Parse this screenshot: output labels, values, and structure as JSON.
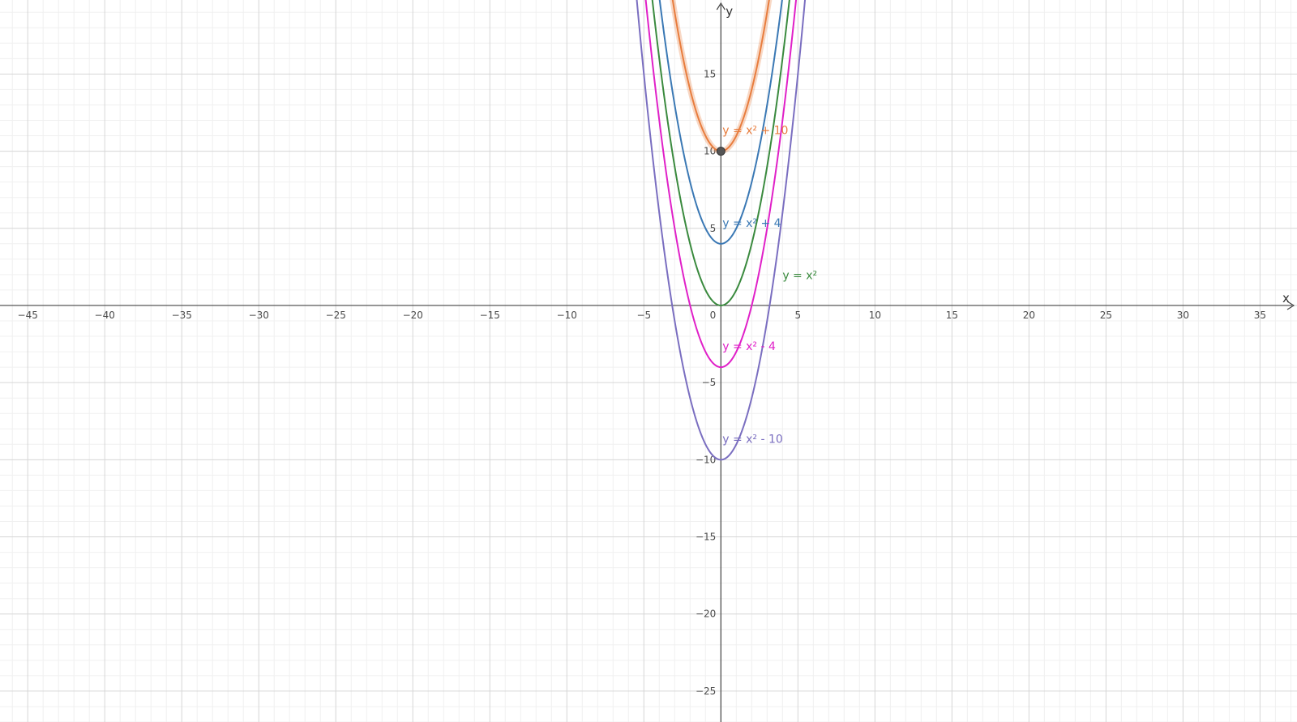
{
  "chart_data": {
    "type": "line",
    "title": "",
    "xlabel": "x",
    "ylabel": "y",
    "xlim": [
      -46.8,
      37.4
    ],
    "ylim": [
      -27,
      19.8
    ],
    "grid": true,
    "x_ticks": [
      -45,
      -40,
      -35,
      -30,
      -25,
      -20,
      -15,
      -10,
      -5,
      0,
      5,
      10,
      15,
      20,
      25,
      30,
      35
    ],
    "y_ticks": [
      -25,
      -20,
      -15,
      -10,
      -5,
      5,
      10,
      15
    ],
    "series": [
      {
        "name": "y = x² + 10",
        "color": "#e87d3e",
        "halo": true,
        "k": 10,
        "points": [
          [
            -3,
            19
          ],
          [
            -2,
            14
          ],
          [
            -1,
            11
          ],
          [
            0,
            10
          ],
          [
            1,
            11
          ],
          [
            2,
            14
          ],
          [
            3,
            19
          ]
        ]
      },
      {
        "name": "y = x² + 4",
        "color": "#3a78b4",
        "k": 4,
        "points": [
          [
            -3,
            13
          ],
          [
            -2,
            8
          ],
          [
            -1,
            5
          ],
          [
            0,
            4
          ],
          [
            1,
            5
          ],
          [
            2,
            8
          ],
          [
            3,
            13
          ]
        ]
      },
      {
        "name": "y = x²",
        "color": "#3a8a3e",
        "k": 0,
        "points": [
          [
            -3,
            9
          ],
          [
            -2,
            4
          ],
          [
            -1,
            1
          ],
          [
            0,
            0
          ],
          [
            1,
            1
          ],
          [
            2,
            4
          ],
          [
            3,
            9
          ]
        ]
      },
      {
        "name": "y = x² - 4",
        "color": "#e020c8",
        "k": -4,
        "points": [
          [
            -3,
            5
          ],
          [
            -2,
            0
          ],
          [
            -1,
            -3
          ],
          [
            0,
            -4
          ],
          [
            1,
            -3
          ],
          [
            2,
            0
          ],
          [
            3,
            5
          ]
        ]
      },
      {
        "name": "y = x² - 10",
        "color": "#7a6ec0",
        "k": -10,
        "points": [
          [
            -3,
            -1
          ],
          [
            -2,
            -6
          ],
          [
            -1,
            -9
          ],
          [
            0,
            -10
          ],
          [
            1,
            -9
          ],
          [
            2,
            -6
          ],
          [
            3,
            -1
          ]
        ]
      }
    ],
    "annotations": [
      {
        "text": "y = x² + 10",
        "series": 0,
        "x": 0.1,
        "y": 11.1
      },
      {
        "text": "y = x² + 4",
        "series": 1,
        "x": 0.1,
        "y": 5.1
      },
      {
        "text": "y = x²",
        "series": 2,
        "x": 4,
        "y": 1.7
      },
      {
        "text": "y = x² - 4",
        "series": 3,
        "x": 0.1,
        "y": -2.9
      },
      {
        "text": "y = x² - 10",
        "series": 4,
        "x": 0.1,
        "y": -8.9
      }
    ],
    "points": [
      {
        "x": 0,
        "y": 10,
        "color": "#555555"
      }
    ]
  }
}
